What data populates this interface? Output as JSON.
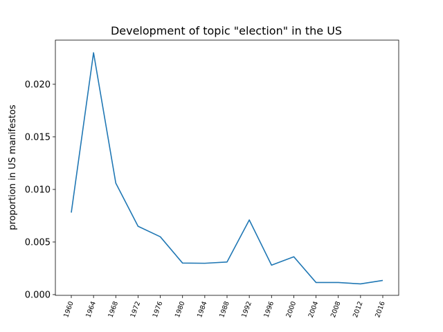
{
  "chart_data": {
    "type": "line",
    "title": "Development of topic \"election\" in the US",
    "xlabel": "",
    "ylabel": "proportion in US manifestos",
    "x": [
      "1960",
      "1964",
      "1968",
      "1972",
      "1976",
      "1980",
      "1984",
      "1988",
      "1992",
      "1996",
      "2000",
      "2004",
      "2008",
      "2012",
      "2016"
    ],
    "series": [
      {
        "values": [
          0.0078,
          0.023,
          0.0106,
          0.0065,
          0.0055,
          0.003,
          0.00298,
          0.0031,
          0.0071,
          0.0028,
          0.0036,
          0.00115,
          0.00115,
          0.00102,
          0.00135
        ]
      }
    ],
    "ylim": [
      -7e-05,
      0.0242
    ],
    "yticks": [
      0.0,
      0.005,
      0.01,
      0.015,
      0.02
    ],
    "ytick_labels": [
      "0.000",
      "0.005",
      "0.010",
      "0.015",
      "0.020"
    ],
    "grid": false,
    "line_color": "#1f77b4"
  }
}
